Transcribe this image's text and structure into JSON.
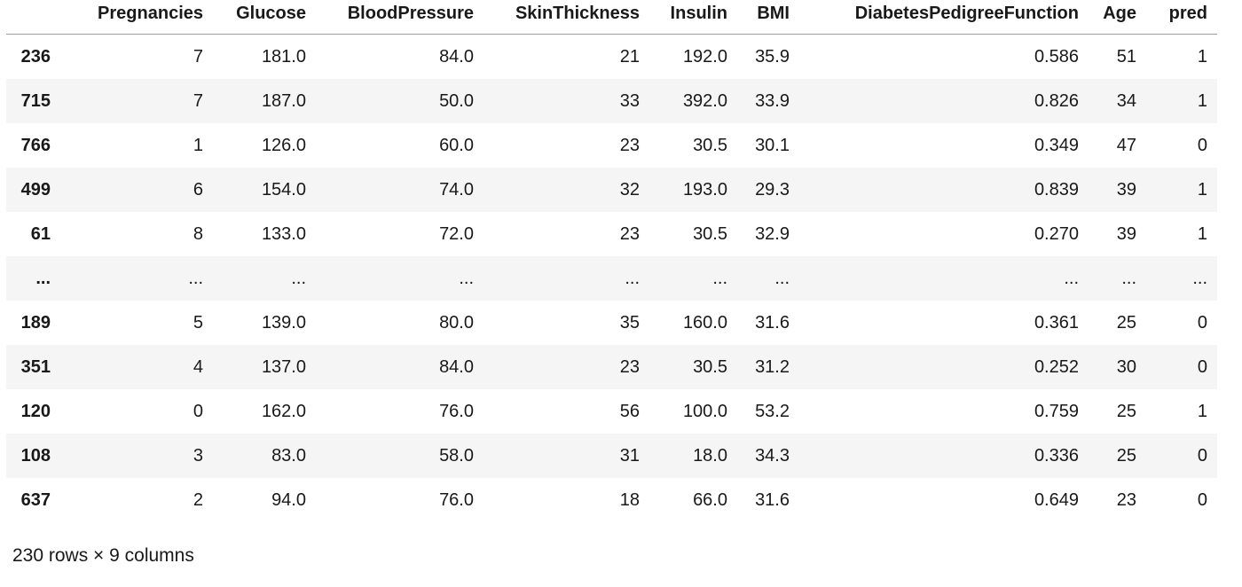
{
  "table": {
    "index_corner_label": "",
    "columns": [
      "Pregnancies",
      "Glucose",
      "BloodPressure",
      "SkinThickness",
      "Insulin",
      "BMI",
      "DiabetesPedigreeFunction",
      "Age",
      "pred"
    ],
    "rows": [
      {
        "index": "236",
        "values": [
          "7",
          "181.0",
          "84.0",
          "21",
          "192.0",
          "35.9",
          "0.586",
          "51",
          "1"
        ]
      },
      {
        "index": "715",
        "values": [
          "7",
          "187.0",
          "50.0",
          "33",
          "392.0",
          "33.9",
          "0.826",
          "34",
          "1"
        ]
      },
      {
        "index": "766",
        "values": [
          "1",
          "126.0",
          "60.0",
          "23",
          "30.5",
          "30.1",
          "0.349",
          "47",
          "0"
        ]
      },
      {
        "index": "499",
        "values": [
          "6",
          "154.0",
          "74.0",
          "32",
          "193.0",
          "29.3",
          "0.839",
          "39",
          "1"
        ]
      },
      {
        "index": "61",
        "values": [
          "8",
          "133.0",
          "72.0",
          "23",
          "30.5",
          "32.9",
          "0.270",
          "39",
          "1"
        ]
      },
      {
        "index": "...",
        "values": [
          "...",
          "...",
          "...",
          "...",
          "...",
          "...",
          "...",
          "...",
          "..."
        ]
      },
      {
        "index": "189",
        "values": [
          "5",
          "139.0",
          "80.0",
          "35",
          "160.0",
          "31.6",
          "0.361",
          "25",
          "0"
        ]
      },
      {
        "index": "351",
        "values": [
          "4",
          "137.0",
          "84.0",
          "23",
          "30.5",
          "31.2",
          "0.252",
          "30",
          "0"
        ]
      },
      {
        "index": "120",
        "values": [
          "0",
          "162.0",
          "76.0",
          "56",
          "100.0",
          "53.2",
          "0.759",
          "25",
          "1"
        ]
      },
      {
        "index": "108",
        "values": [
          "3",
          "83.0",
          "58.0",
          "31",
          "18.0",
          "34.3",
          "0.336",
          "25",
          "0"
        ]
      },
      {
        "index": "637",
        "values": [
          "2",
          "94.0",
          "76.0",
          "18",
          "66.0",
          "31.6",
          "0.649",
          "23",
          "0"
        ]
      }
    ],
    "footer": "230 rows × 9 columns"
  },
  "colors": {
    "row_stripe": "#f5f5f5",
    "header_border": "#9e9e9e",
    "text": "#191919"
  }
}
